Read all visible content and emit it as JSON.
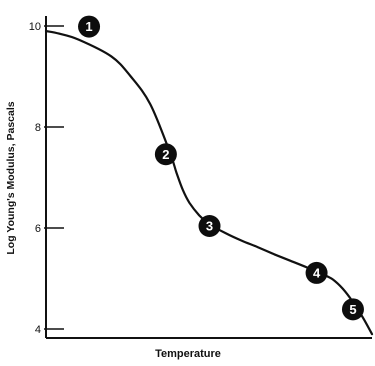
{
  "chart_data": {
    "type": "line",
    "title": "",
    "xlabel": "Temperature",
    "ylabel": "Log Young's Modulus, Pascals",
    "ylim": [
      4,
      10
    ],
    "yticks": [
      4,
      6,
      8,
      10
    ],
    "xticks": [],
    "grid": false,
    "legend": "none",
    "line_color": "#111111",
    "series": [
      {
        "x": [
          0.0,
          0.04,
          0.1,
          0.2,
          0.26,
          0.32,
          0.38,
          0.4,
          0.42,
          0.44,
          0.47,
          0.5,
          0.55,
          0.6,
          0.65,
          0.7,
          0.75,
          0.8,
          0.85,
          0.88,
          0.91,
          0.94,
          0.97,
          1.0
        ],
        "values": [
          9.9,
          9.85,
          9.73,
          9.4,
          9.0,
          8.45,
          7.5,
          7.1,
          6.75,
          6.5,
          6.25,
          6.08,
          5.9,
          5.75,
          5.62,
          5.48,
          5.35,
          5.22,
          5.08,
          4.98,
          4.8,
          4.55,
          4.25,
          3.9
        ]
      }
    ],
    "annotations": [
      {
        "label": "1",
        "x": 0.04,
        "y": 9.85
      },
      {
        "label": "2",
        "x": 0.38,
        "y": 7.5
      },
      {
        "label": "3",
        "x": 0.52,
        "y": 6.0
      },
      {
        "label": "4",
        "x": 0.83,
        "y": 5.15
      },
      {
        "label": "5",
        "x": 0.96,
        "y": 4.35
      }
    ]
  }
}
